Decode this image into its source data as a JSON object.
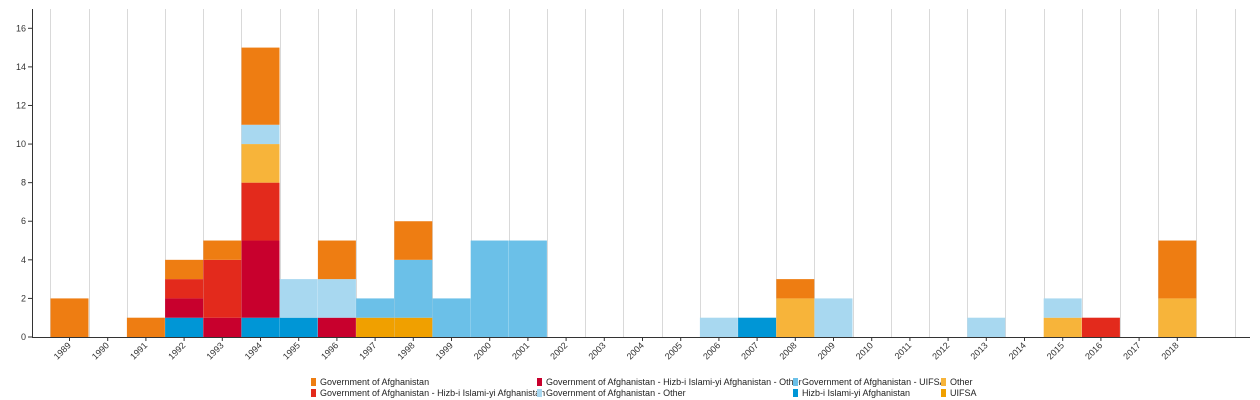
{
  "chart_data": {
    "type": "bar",
    "stacked": true,
    "title": "",
    "xlabel": "",
    "ylabel": "",
    "ylim": [
      0,
      17
    ],
    "yticks": [
      0,
      2,
      4,
      6,
      8,
      10,
      12,
      14,
      16
    ],
    "grid": "vertical",
    "legend_position": "bottom",
    "categories": [
      "1989",
      "1990",
      "1991",
      "1992",
      "1993",
      "1994",
      "1995",
      "1996",
      "1997",
      "1998",
      "1999",
      "2000",
      "2001",
      "2002",
      "2003",
      "2004",
      "2005",
      "2006",
      "2007",
      "2008",
      "2009",
      "2010",
      "2011",
      "2012",
      "2013",
      "2014",
      "2015",
      "2016",
      "2017",
      "2018"
    ],
    "series": [
      {
        "name": "Hizb-i Islami-yi Afghanistan",
        "color": "#0096d6",
        "values": [
          0,
          0,
          0,
          1,
          0,
          1,
          1,
          0,
          0,
          0,
          0,
          0,
          0,
          0,
          0,
          0,
          0,
          0,
          1,
          0,
          0,
          0,
          0,
          0,
          0,
          0,
          0,
          0,
          0,
          0
        ]
      },
      {
        "name": "Government of Afghanistan - Hizb-i Islami-yi Afghanistan - Other",
        "color": "#c8002d",
        "values": [
          0,
          0,
          0,
          1,
          1,
          4,
          0,
          1,
          0,
          0,
          0,
          0,
          0,
          0,
          0,
          0,
          0,
          0,
          0,
          0,
          0,
          0,
          0,
          0,
          0,
          0,
          0,
          0,
          0,
          0
        ]
      },
      {
        "name": "Government of Afghanistan - Hizb-i Islami-yi Afghanistan",
        "color": "#e32a1c",
        "values": [
          0,
          0,
          0,
          1,
          3,
          3,
          0,
          0,
          0,
          0,
          0,
          0,
          0,
          0,
          0,
          0,
          0,
          0,
          0,
          0,
          0,
          0,
          0,
          0,
          0,
          0,
          0,
          1,
          0,
          0
        ]
      },
      {
        "name": "UIFSA",
        "color": "#f0a000",
        "values": [
          0,
          0,
          0,
          0,
          0,
          0,
          0,
          0,
          1,
          1,
          0,
          0,
          0,
          0,
          0,
          0,
          0,
          0,
          0,
          0,
          0,
          0,
          0,
          0,
          0,
          0,
          0,
          0,
          0,
          0
        ]
      },
      {
        "name": "Other",
        "color": "#f7b43a",
        "values": [
          0,
          0,
          0,
          0,
          0,
          2,
          0,
          0,
          0,
          0,
          0,
          0,
          0,
          0,
          0,
          0,
          0,
          0,
          0,
          2,
          0,
          0,
          0,
          0,
          0,
          0,
          1,
          0,
          0,
          2
        ]
      },
      {
        "name": "Government of Afghanistan - UIFSA",
        "color": "#6bc0e8",
        "values": [
          0,
          0,
          0,
          0,
          0,
          0,
          0,
          0,
          1,
          3,
          2,
          5,
          5,
          0,
          0,
          0,
          0,
          0,
          0,
          0,
          0,
          0,
          0,
          0,
          0,
          0,
          0,
          0,
          0,
          0
        ]
      },
      {
        "name": "Government of Afghanistan - Other",
        "color": "#a8d8f0",
        "values": [
          0,
          0,
          0,
          0,
          0,
          1,
          2,
          2,
          0,
          0,
          0,
          0,
          0,
          0,
          0,
          0,
          0,
          1,
          0,
          0,
          2,
          0,
          0,
          0,
          1,
          0,
          1,
          0,
          0,
          0
        ]
      },
      {
        "name": "Government of Afghanistan",
        "color": "#ee7d12",
        "values": [
          2,
          0,
          1,
          1,
          1,
          4,
          0,
          2,
          0,
          2,
          0,
          0,
          0,
          0,
          0,
          0,
          0,
          0,
          0,
          1,
          0,
          0,
          0,
          0,
          0,
          0,
          0,
          0,
          0,
          3
        ]
      }
    ]
  },
  "legend": {
    "items": [
      {
        "label": "Government of Afghanistan",
        "color": "#ee7d12"
      },
      {
        "label": "Government of Afghanistan - Hizb-i Islami-yi Afghanistan",
        "color": "#e32a1c"
      },
      {
        "label": "Government of Afghanistan - Hizb-i Islami-yi Afghanistan - Other",
        "color": "#c8002d"
      },
      {
        "label": "Government of Afghanistan - Other",
        "color": "#a8d8f0"
      },
      {
        "label": "Government of Afghanistan - UIFSA",
        "color": "#6bc0e8"
      },
      {
        "label": "Hizb-i Islami-yi Afghanistan",
        "color": "#0096d6"
      },
      {
        "label": "Other",
        "color": "#f7b43a"
      },
      {
        "label": "UIFSA",
        "color": "#f0a000"
      }
    ]
  }
}
